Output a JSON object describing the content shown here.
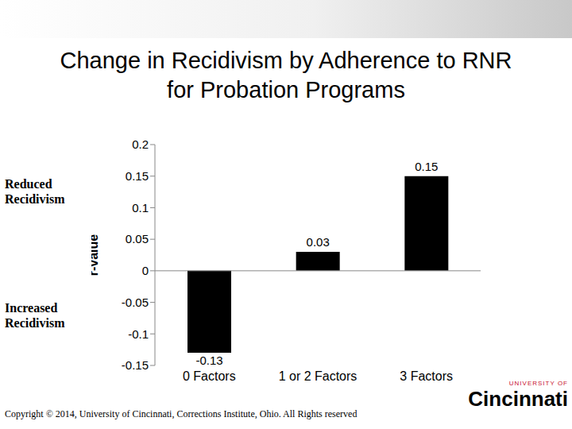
{
  "chart_data": {
    "type": "bar",
    "title": "Change in Recidivism by Adherence to RNR for Probation Programs",
    "categories": [
      "0 Factors",
      "1 or 2 Factors",
      "3 Factors"
    ],
    "values": [
      -0.13,
      0.03,
      0.15
    ],
    "color": "#000000",
    "ylabel": "r-value",
    "ylim": [
      -0.15,
      0.2
    ],
    "yticks": [
      -0.15,
      -0.1,
      -0.05,
      0,
      0.05,
      0.1,
      0.15,
      0.2
    ],
    "grid": false,
    "data_labels": true,
    "annotations": [
      "Reduced Recidivism",
      "Increased Recidivism"
    ],
    "footer": "Copyright © 2014, University of Cincinnati, Corrections Institute, Ohio. All Rights reserved",
    "logo": [
      "UNIVERSITY OF",
      "Cincinnati"
    ]
  }
}
